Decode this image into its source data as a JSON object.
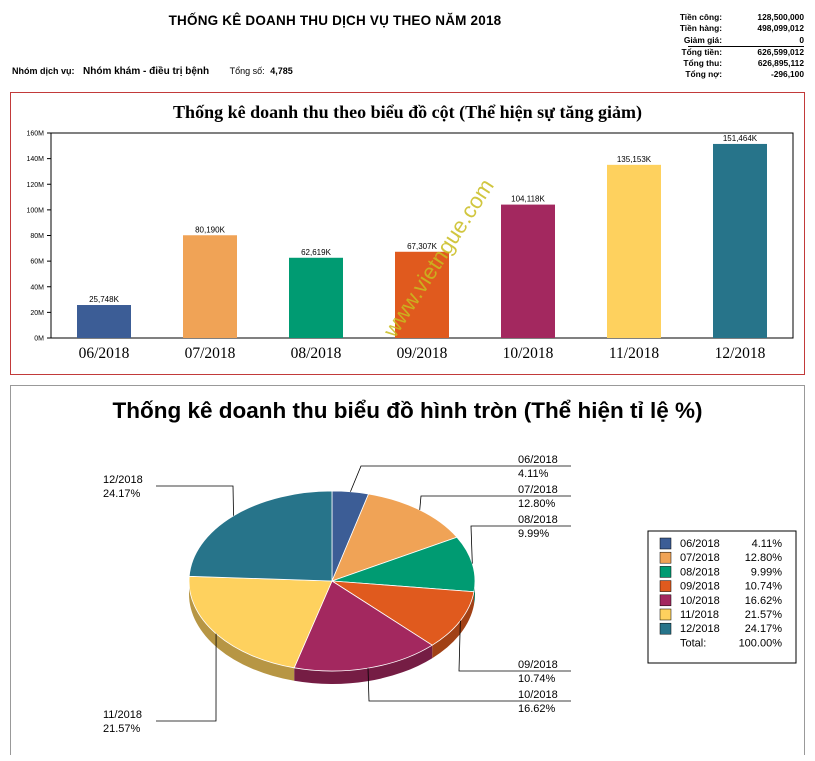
{
  "report": {
    "title": "THỐNG KÊ DOANH THU DỊCH VỤ THEO NĂM 2018",
    "group_label": "Nhóm dịch vụ:",
    "group_value": "Nhóm khám - điều trị bệnh",
    "total_label": "Tổng số:",
    "total_value": "4,785"
  },
  "summary": [
    {
      "label": "Tiền công:",
      "value": "128,500,000"
    },
    {
      "label": "Tiền hàng:",
      "value": "498,099,012"
    },
    {
      "label": "Giảm giá:",
      "value": "0"
    },
    {
      "label": "Tổng tiền:",
      "value": "626,599,012"
    },
    {
      "label": "Tổng thu:",
      "value": "626,895,112"
    },
    {
      "label": "Tổng nợ:",
      "value": "-296,100"
    }
  ],
  "watermark": "www.vietngue.com",
  "colors": {
    "bar_panel_border": "#c23a3a",
    "pie_panel_border": "#999999"
  },
  "chart_data": [
    {
      "type": "bar",
      "title": "Thống kê doanh thu theo biểu đồ cột (Thể hiện sự tăng giảm)",
      "categories": [
        "06/2018",
        "07/2018",
        "08/2018",
        "09/2018",
        "10/2018",
        "11/2018",
        "12/2018"
      ],
      "values": [
        25748000,
        80190000,
        62619000,
        67307000,
        104118000,
        135153000,
        151464000
      ],
      "value_labels": [
        "25,748K",
        "80,190K",
        "62,619K",
        "67,307K",
        "104,118K",
        "135,153K",
        "151,464K"
      ],
      "colors": [
        "#3c5d96",
        "#f0a356",
        "#009b72",
        "#e05a1e",
        "#a3285f",
        "#fed15e",
        "#27748a"
      ],
      "yticks": [
        "0M",
        "20M",
        "40M",
        "60M",
        "80M",
        "100M",
        "120M",
        "140M",
        "160M"
      ],
      "ylim": [
        0,
        160000000
      ],
      "grid": false
    },
    {
      "type": "pie",
      "title": "Thống kê doanh thu biểu đồ hình tròn (Thể hiện tỉ lệ %)",
      "labels": [
        "06/2018",
        "07/2018",
        "08/2018",
        "09/2018",
        "10/2018",
        "11/2018",
        "12/2018"
      ],
      "values": [
        4.11,
        12.8,
        9.99,
        10.74,
        16.62,
        21.57,
        24.17
      ],
      "value_labels": [
        "4.11%",
        "12.80%",
        "9.99%",
        "10.74%",
        "16.62%",
        "21.57%",
        "24.17%"
      ],
      "colors": [
        "#3c5d96",
        "#f0a356",
        "#009b72",
        "#e05a1e",
        "#a3285f",
        "#fed15e",
        "#27748a"
      ],
      "legend_position": "right",
      "legend_total_label": "Total:",
      "legend_total_value": "100.00%"
    }
  ]
}
